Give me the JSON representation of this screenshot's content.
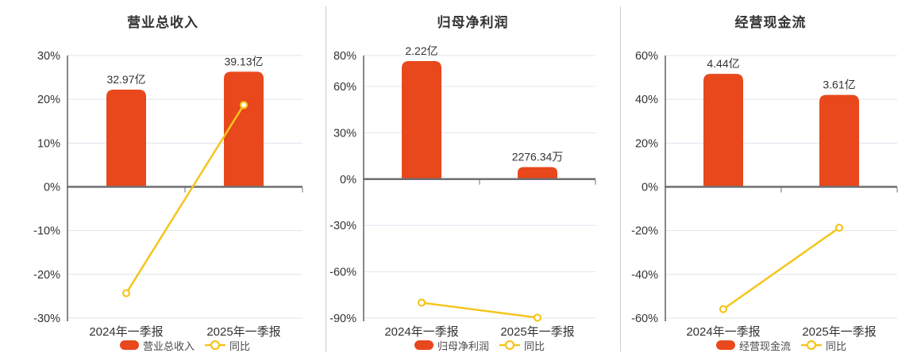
{
  "colors": {
    "bar": "#e8481c",
    "line": "#f5c51d",
    "grid": "#dde4ee",
    "axis_line": "#55565a",
    "zero_line": "#6e6f72",
    "divider": "#cccccc",
    "title_text": "#333333",
    "tick_text": "#333333",
    "category_text": "#333333",
    "value_text": "#333333",
    "legend_text": "#4a4a4a",
    "marker_fill": "#ffffff",
    "background": "#ffffff"
  },
  "chart_data": [
    {
      "type": "bar",
      "title": "营业总收入",
      "categories": [
        "2024年一季报",
        "2025年一季报"
      ],
      "ylim": [
        -30,
        30
      ],
      "yticks": [
        30,
        20,
        10,
        0,
        -10,
        -20,
        -30
      ],
      "ytick_suffix": "%",
      "grid": true,
      "legend_position": "bottom",
      "legend": [
        "营业总收入",
        "同比"
      ],
      "series": [
        {
          "name": "营业总收入",
          "type": "bar",
          "value_labels": [
            "32.97亿",
            "39.13亿"
          ],
          "plotted_axis_values": [
            22.2,
            26.3
          ]
        },
        {
          "name": "同比",
          "type": "line",
          "unit": "%",
          "values": [
            -24.3,
            18.7
          ]
        }
      ]
    },
    {
      "type": "bar",
      "title": "归母净利润",
      "categories": [
        "2024年一季报",
        "2025年一季报"
      ],
      "ylim": [
        -90,
        80
      ],
      "yticks": [
        80,
        60,
        30,
        0,
        -30,
        -60,
        -90
      ],
      "ytick_suffix": "%",
      "grid": true,
      "legend_position": "bottom",
      "legend": [
        "归母净利润",
        "同比"
      ],
      "series": [
        {
          "name": "归母净利润",
          "type": "bar",
          "value_labels": [
            "2.22亿",
            "2276.34万"
          ],
          "plotted_axis_values": [
            76.4,
            7.8
          ]
        },
        {
          "name": "同比",
          "type": "line",
          "unit": "%",
          "values": [
            -80,
            -89.7
          ]
        }
      ]
    },
    {
      "type": "bar",
      "title": "经营现金流",
      "categories": [
        "2024年一季报",
        "2025年一季报"
      ],
      "ylim": [
        -60,
        60
      ],
      "yticks": [
        60,
        40,
        20,
        0,
        -20,
        -40,
        -60
      ],
      "ytick_suffix": "%",
      "grid": true,
      "legend_position": "bottom",
      "legend": [
        "经营现金流",
        "同比"
      ],
      "series": [
        {
          "name": "经营现金流",
          "type": "bar",
          "value_labels": [
            "4.44亿",
            "3.61亿"
          ],
          "plotted_axis_values": [
            51.6,
            42.0
          ]
        },
        {
          "name": "同比",
          "type": "line",
          "unit": "%",
          "values": [
            -55.9,
            -18.7
          ]
        }
      ]
    }
  ]
}
